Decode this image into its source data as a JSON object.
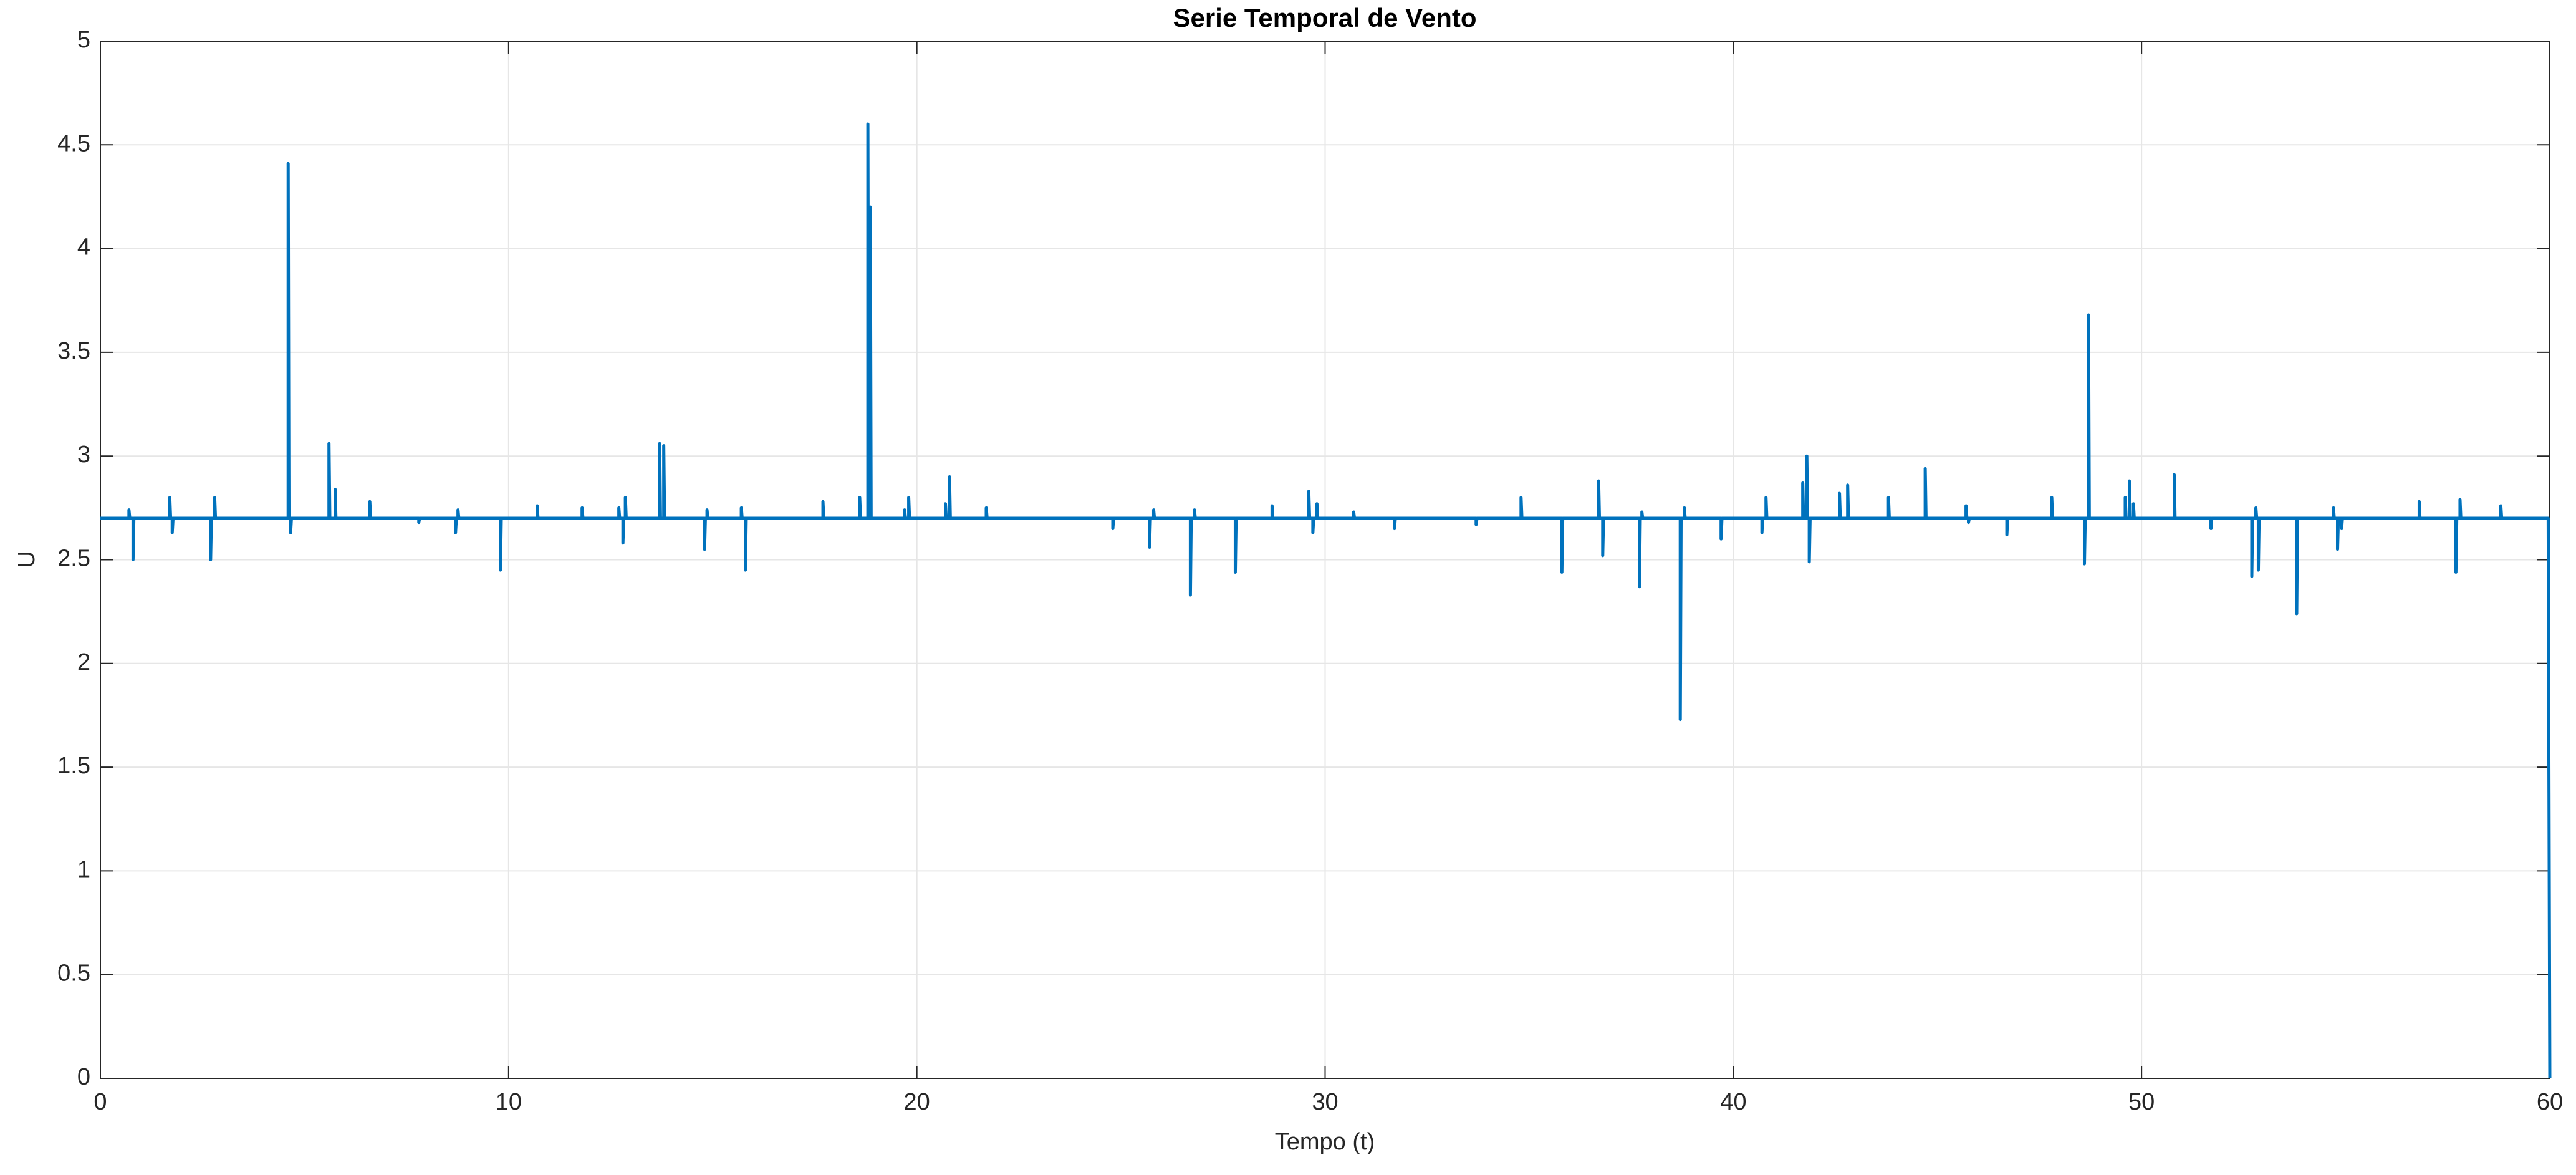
{
  "chart_data": {
    "type": "line",
    "title": "Serie Temporal de Vento",
    "x_label": "Tempo (t)",
    "y_label": "U",
    "color": "#0072bd",
    "grid": true,
    "xlim": [
      0,
      60
    ],
    "ylim": [
      0,
      5
    ],
    "xticks": [
      0,
      10,
      20,
      30,
      40,
      50,
      60
    ],
    "yticks": [
      0,
      0.5,
      1,
      1.5,
      2,
      2.5,
      3,
      3.5,
      4,
      4.5,
      5
    ],
    "x": [
      0,
      0.7,
      0.7,
      0.72,
      0.8,
      0.8,
      0.82,
      1.7,
      1.7,
      1.72,
      1.76,
      1.76,
      1.78,
      2.7,
      2.7,
      2.72,
      2.8,
      2.8,
      2.82,
      4.6,
      4.6,
      4.62,
      4.66,
      4.66,
      4.68,
      5.6,
      5.6,
      5.62,
      5.75,
      5.75,
      5.77,
      6.6,
      6.6,
      6.62,
      7.8,
      7.8,
      7.82,
      8.7,
      8.7,
      8.72,
      8.76,
      8.76,
      8.78,
      9.8,
      9.8,
      9.82,
      10.7,
      10.7,
      10.72,
      11.8,
      11.8,
      11.82,
      12.7,
      12.7,
      12.72,
      12.8,
      12.8,
      12.82,
      12.86,
      12.86,
      12.88,
      13.7,
      13.7,
      13.72,
      13.8,
      13.8,
      13.82,
      14.8,
      14.8,
      14.82,
      14.86,
      14.86,
      14.88,
      15.7,
      15.7,
      15.72,
      15.8,
      15.8,
      15.82,
      17.7,
      17.7,
      17.72,
      18.6,
      18.6,
      18.62,
      18.8,
      18.8,
      18.82,
      18.86,
      18.86,
      18.88,
      19.7,
      19.7,
      19.72,
      19.8,
      19.8,
      19.82,
      20.7,
      20.7,
      20.72,
      20.8,
      20.8,
      20.82,
      21.7,
      21.7,
      21.72,
      24.8,
      24.8,
      24.82,
      25.7,
      25.7,
      25.72,
      25.8,
      25.8,
      25.82,
      26.7,
      26.7,
      26.72,
      26.8,
      26.8,
      26.82,
      27.8,
      27.8,
      27.82,
      28.7,
      28.7,
      28.72,
      29.6,
      29.6,
      29.62,
      29.7,
      29.7,
      29.72,
      29.8,
      29.8,
      29.82,
      30.7,
      30.7,
      30.72,
      31.7,
      31.7,
      31.72,
      33.7,
      33.7,
      33.72,
      34.8,
      34.8,
      34.82,
      35.8,
      35.8,
      35.82,
      36.7,
      36.7,
      36.72,
      36.8,
      36.8,
      36.82,
      37.7,
      37.7,
      37.72,
      37.76,
      37.76,
      37.78,
      38.7,
      38.7,
      38.72,
      38.8,
      38.8,
      38.82,
      39.7,
      39.7,
      39.72,
      40.7,
      40.7,
      40.72,
      40.8,
      40.8,
      40.82,
      41.7,
      41.7,
      41.72,
      41.8,
      41.8,
      41.82,
      41.86,
      41.86,
      41.88,
      42.6,
      42.6,
      42.62,
      42.8,
      42.8,
      42.82,
      43.8,
      43.8,
      43.82,
      44.7,
      44.7,
      44.72,
      45.7,
      45.7,
      45.72,
      45.76,
      45.76,
      45.78,
      46.7,
      46.7,
      46.72,
      47.8,
      47.8,
      47.82,
      48.6,
      48.6,
      48.62,
      48.7,
      48.7,
      48.72,
      49.6,
      49.6,
      49.62,
      49.7,
      49.7,
      49.72,
      49.8,
      49.8,
      49.82,
      50.8,
      50.8,
      50.82,
      51.7,
      51.7,
      51.72,
      52.7,
      52.7,
      52.72,
      52.8,
      52.8,
      52.82,
      52.86,
      52.86,
      52.88,
      53.8,
      53.8,
      53.82,
      54.7,
      54.7,
      54.72,
      54.8,
      54.8,
      54.82,
      54.9,
      54.9,
      54.92,
      56.8,
      56.8,
      56.82,
      57.7,
      57.7,
      57.72,
      57.8,
      57.8,
      57.82,
      58.8,
      58.8,
      58.82,
      59.96,
      60
    ],
    "values": [
      2.7,
      2.7,
      2.74,
      2.7,
      2.7,
      2.5,
      2.7,
      2.7,
      2.8,
      2.7,
      2.7,
      2.63,
      2.7,
      2.7,
      2.5,
      2.7,
      2.7,
      2.8,
      2.7,
      2.7,
      4.41,
      2.7,
      2.7,
      2.63,
      2.7,
      2.7,
      3.06,
      2.7,
      2.7,
      2.84,
      2.7,
      2.7,
      2.78,
      2.7,
      2.7,
      2.68,
      2.7,
      2.7,
      2.63,
      2.7,
      2.7,
      2.74,
      2.7,
      2.7,
      2.45,
      2.7,
      2.7,
      2.76,
      2.7,
      2.7,
      2.75,
      2.7,
      2.7,
      2.75,
      2.7,
      2.7,
      2.58,
      2.7,
      2.7,
      2.8,
      2.7,
      2.7,
      3.06,
      2.7,
      2.7,
      3.05,
      2.7,
      2.7,
      2.55,
      2.7,
      2.7,
      2.74,
      2.7,
      2.7,
      2.75,
      2.7,
      2.7,
      2.45,
      2.7,
      2.7,
      2.78,
      2.7,
      2.7,
      2.8,
      2.7,
      2.7,
      4.6,
      2.7,
      2.7,
      4.2,
      2.7,
      2.7,
      2.74,
      2.7,
      2.7,
      2.8,
      2.7,
      2.7,
      2.77,
      2.7,
      2.7,
      2.9,
      2.7,
      2.7,
      2.75,
      2.7,
      2.7,
      2.65,
      2.7,
      2.7,
      2.56,
      2.7,
      2.7,
      2.74,
      2.7,
      2.7,
      2.33,
      2.7,
      2.7,
      2.74,
      2.7,
      2.7,
      2.44,
      2.7,
      2.7,
      2.76,
      2.7,
      2.7,
      2.83,
      2.7,
      2.7,
      2.63,
      2.7,
      2.7,
      2.77,
      2.7,
      2.7,
      2.73,
      2.7,
      2.7,
      2.65,
      2.7,
      2.7,
      2.67,
      2.7,
      2.7,
      2.8,
      2.7,
      2.7,
      2.44,
      2.7,
      2.7,
      2.88,
      2.7,
      2.7,
      2.52,
      2.7,
      2.7,
      2.37,
      2.7,
      2.7,
      2.73,
      2.7,
      2.7,
      1.73,
      2.7,
      2.7,
      2.75,
      2.7,
      2.7,
      2.6,
      2.7,
      2.7,
      2.63,
      2.7,
      2.7,
      2.8,
      2.7,
      2.7,
      2.87,
      2.7,
      2.7,
      3.0,
      2.7,
      2.7,
      2.49,
      2.7,
      2.7,
      2.82,
      2.7,
      2.7,
      2.86,
      2.7,
      2.7,
      2.8,
      2.7,
      2.7,
      2.94,
      2.7,
      2.7,
      2.76,
      2.7,
      2.7,
      2.68,
      2.7,
      2.7,
      2.62,
      2.7,
      2.7,
      2.8,
      2.7,
      2.7,
      2.48,
      2.7,
      2.7,
      3.68,
      2.7,
      2.7,
      2.8,
      2.7,
      2.7,
      2.88,
      2.7,
      2.7,
      2.77,
      2.7,
      2.7,
      2.91,
      2.7,
      2.7,
      2.65,
      2.7,
      2.7,
      2.42,
      2.7,
      2.7,
      2.75,
      2.7,
      2.7,
      2.45,
      2.7,
      2.7,
      2.24,
      2.7,
      2.7,
      2.75,
      2.7,
      2.7,
      2.55,
      2.7,
      2.7,
      2.65,
      2.7,
      2.7,
      2.78,
      2.7,
      2.7,
      2.44,
      2.7,
      2.7,
      2.79,
      2.7,
      2.7,
      2.76,
      2.7,
      2.7,
      0
    ]
  }
}
